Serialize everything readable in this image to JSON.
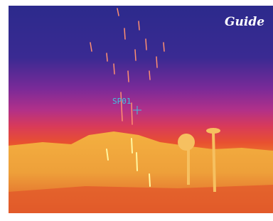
{
  "brand": "Guide",
  "marker": {
    "label": "SP01"
  }
}
